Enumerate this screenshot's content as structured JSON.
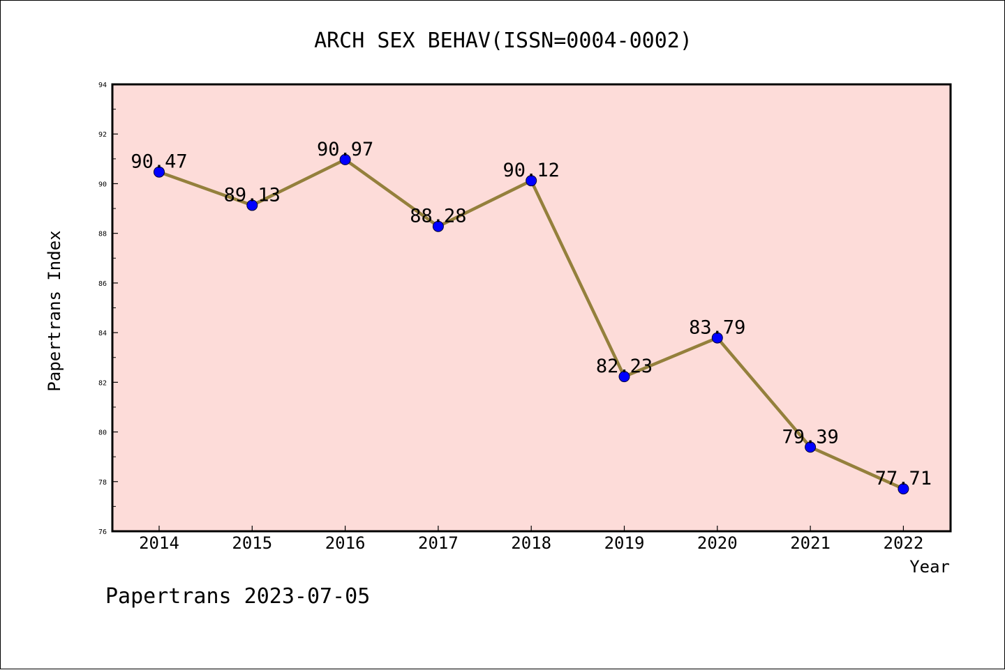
{
  "chart_data": {
    "type": "line",
    "title": "ARCH SEX BEHAV(ISSN=0004-0002)",
    "xlabel": "Year",
    "ylabel": "Papertrans Index",
    "categories": [
      "2014",
      "2015",
      "2016",
      "2017",
      "2018",
      "2019",
      "2020",
      "2021",
      "2022"
    ],
    "values": [
      90.47,
      89.13,
      90.97,
      88.28,
      90.12,
      82.23,
      83.79,
      79.39,
      77.71
    ],
    "data_labels": [
      "90.47",
      "89.13",
      "90.97",
      "88.28",
      "90.12",
      "82.23",
      "83.79",
      "79.39",
      "77.71"
    ],
    "ylim": [
      76,
      94
    ],
    "yticks": [
      "76",
      "78",
      "80",
      "82",
      "84",
      "86",
      "88",
      "90",
      "92",
      "94"
    ],
    "grid": false,
    "legend": "none",
    "colors": {
      "plot_background": "#fddcd9",
      "line": "#94803c",
      "marker": "#0000ff"
    }
  },
  "footer": "Papertrans 2023-07-05"
}
